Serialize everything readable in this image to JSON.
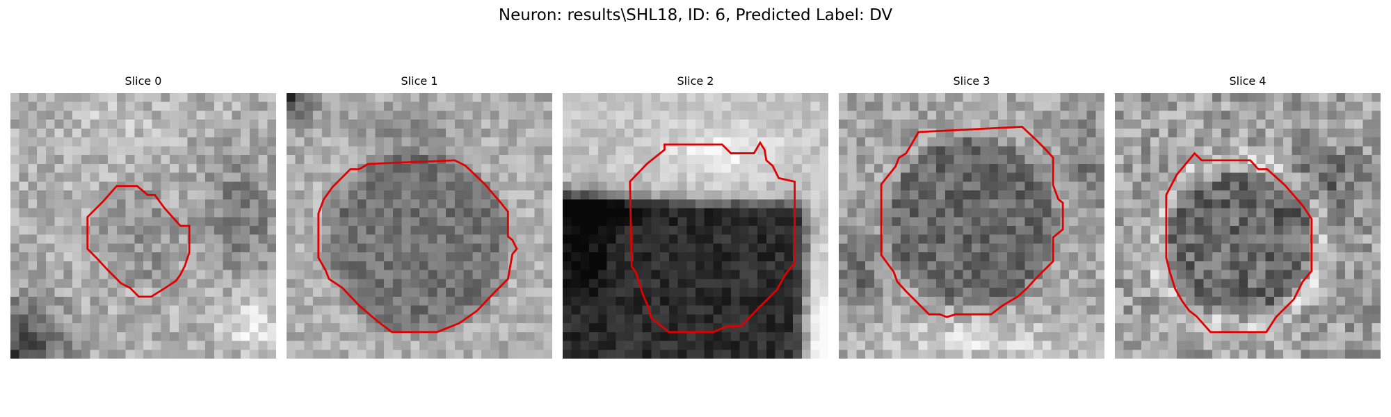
{
  "figure": {
    "title": "Neuron: results\\SHL18, ID: 6, Predicted Label: DV",
    "contour_color": "#e00000"
  },
  "panels": [
    {
      "title": "Slice 0"
    },
    {
      "title": "Slice 1"
    },
    {
      "title": "Slice 2"
    },
    {
      "title": "Slice 3"
    },
    {
      "title": "Slice 4"
    }
  ]
}
